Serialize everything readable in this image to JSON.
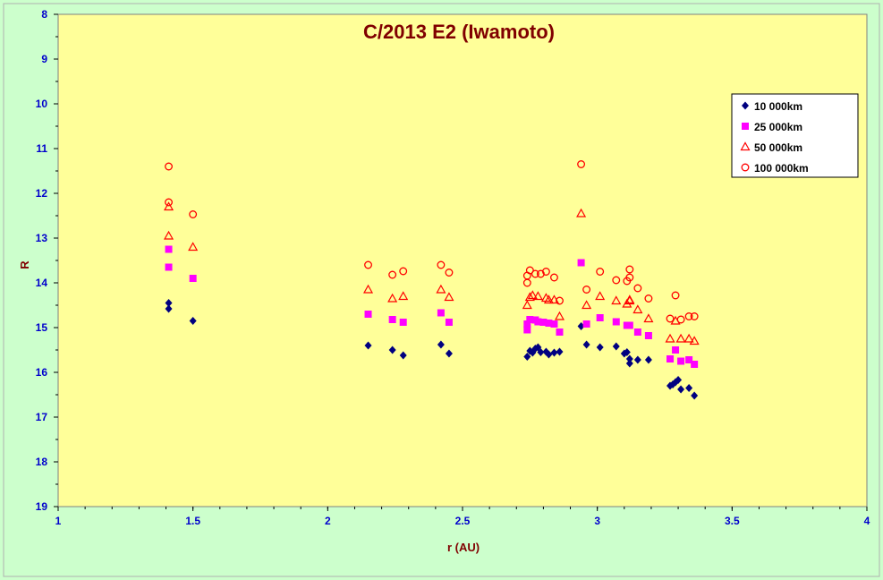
{
  "chart_data": {
    "type": "scatter",
    "title": "C/2013 E2 (Iwamoto)",
    "xlabel": "r (AU)",
    "ylabel": "R",
    "xlim": [
      1,
      4
    ],
    "ylim": [
      8,
      19
    ],
    "y_inverted": true,
    "x_ticks": [
      "1",
      "1.5",
      "2",
      "2.5",
      "3",
      "3.5",
      "4"
    ],
    "y_ticks": [
      "8",
      "9",
      "10",
      "11",
      "12",
      "13",
      "14",
      "15",
      "16",
      "17",
      "18",
      "19"
    ],
    "grid": false,
    "legend_position": "right",
    "colors": {
      "page_background": "#ccffcc",
      "plot_background": "#ffff99",
      "title": "#800000",
      "ticks": "#0000cc",
      "axis_label": "#800000"
    },
    "series": [
      {
        "name": "10 000km",
        "marker": "diamond",
        "color": "#000080",
        "points": [
          [
            1.41,
            14.45
          ],
          [
            1.41,
            14.58
          ],
          [
            1.5,
            14.85
          ],
          [
            2.15,
            15.4
          ],
          [
            2.24,
            15.5
          ],
          [
            2.28,
            15.62
          ],
          [
            2.42,
            15.38
          ],
          [
            2.45,
            15.58
          ],
          [
            2.74,
            15.65
          ],
          [
            2.75,
            15.52
          ],
          [
            2.76,
            15.56
          ],
          [
            2.77,
            15.47
          ],
          [
            2.78,
            15.44
          ],
          [
            2.79,
            15.55
          ],
          [
            2.81,
            15.54
          ],
          [
            2.82,
            15.6
          ],
          [
            2.84,
            15.56
          ],
          [
            2.86,
            15.54
          ],
          [
            2.94,
            14.97
          ],
          [
            2.96,
            15.38
          ],
          [
            3.01,
            15.44
          ],
          [
            3.07,
            15.42
          ],
          [
            3.1,
            15.58
          ],
          [
            3.11,
            15.55
          ],
          [
            3.12,
            15.7
          ],
          [
            3.12,
            15.8
          ],
          [
            3.15,
            15.72
          ],
          [
            3.19,
            15.72
          ],
          [
            3.27,
            16.3
          ],
          [
            3.28,
            16.27
          ],
          [
            3.29,
            16.22
          ],
          [
            3.3,
            16.17
          ],
          [
            3.31,
            16.38
          ],
          [
            3.34,
            16.35
          ],
          [
            3.36,
            16.52
          ]
        ]
      },
      {
        "name": "25 000km",
        "marker": "square",
        "color": "#ff00ff",
        "points": [
          [
            1.41,
            13.25
          ],
          [
            1.41,
            13.65
          ],
          [
            1.5,
            13.9
          ],
          [
            2.15,
            14.7
          ],
          [
            2.24,
            14.82
          ],
          [
            2.28,
            14.88
          ],
          [
            2.42,
            14.67
          ],
          [
            2.45,
            14.88
          ],
          [
            2.74,
            15.05
          ],
          [
            2.74,
            14.92
          ],
          [
            2.75,
            14.82
          ],
          [
            2.77,
            14.83
          ],
          [
            2.78,
            14.87
          ],
          [
            2.8,
            14.88
          ],
          [
            2.82,
            14.9
          ],
          [
            2.84,
            14.92
          ],
          [
            2.86,
            15.1
          ],
          [
            2.94,
            13.55
          ],
          [
            2.96,
            14.92
          ],
          [
            3.01,
            14.78
          ],
          [
            3.07,
            14.87
          ],
          [
            3.11,
            14.95
          ],
          [
            3.12,
            14.95
          ],
          [
            3.15,
            15.1
          ],
          [
            3.19,
            15.18
          ],
          [
            3.27,
            15.7
          ],
          [
            3.29,
            15.5
          ],
          [
            3.31,
            15.75
          ],
          [
            3.34,
            15.72
          ],
          [
            3.36,
            15.82
          ]
        ]
      },
      {
        "name": "50 000km",
        "marker": "triangle",
        "color": "#ff0000",
        "points": [
          [
            1.41,
            12.3
          ],
          [
            1.41,
            12.95
          ],
          [
            1.5,
            13.2
          ],
          [
            2.15,
            14.15
          ],
          [
            2.24,
            14.35
          ],
          [
            2.28,
            14.3
          ],
          [
            2.42,
            14.15
          ],
          [
            2.45,
            14.32
          ],
          [
            2.74,
            14.5
          ],
          [
            2.75,
            14.32
          ],
          [
            2.76,
            14.28
          ],
          [
            2.78,
            14.3
          ],
          [
            2.81,
            14.34
          ],
          [
            2.82,
            14.38
          ],
          [
            2.84,
            14.38
          ],
          [
            2.86,
            14.75
          ],
          [
            2.94,
            12.45
          ],
          [
            2.96,
            14.5
          ],
          [
            3.01,
            14.3
          ],
          [
            3.07,
            14.4
          ],
          [
            3.11,
            14.47
          ],
          [
            3.12,
            14.38
          ],
          [
            3.12,
            14.4
          ],
          [
            3.15,
            14.6
          ],
          [
            3.19,
            14.8
          ],
          [
            3.27,
            15.25
          ],
          [
            3.29,
            14.85
          ],
          [
            3.31,
            15.25
          ],
          [
            3.34,
            15.25
          ],
          [
            3.36,
            15.3
          ]
        ]
      },
      {
        "name": "100 000km",
        "marker": "circle",
        "color": "#ff0000",
        "points": [
          [
            1.41,
            11.4
          ],
          [
            1.41,
            12.2
          ],
          [
            1.5,
            12.47
          ],
          [
            2.15,
            13.6
          ],
          [
            2.24,
            13.82
          ],
          [
            2.28,
            13.74
          ],
          [
            2.42,
            13.6
          ],
          [
            2.45,
            13.77
          ],
          [
            2.74,
            14.0
          ],
          [
            2.74,
            13.84
          ],
          [
            2.75,
            13.72
          ],
          [
            2.77,
            13.8
          ],
          [
            2.79,
            13.8
          ],
          [
            2.81,
            13.75
          ],
          [
            2.84,
            13.88
          ],
          [
            2.86,
            14.4
          ],
          [
            2.94,
            11.35
          ],
          [
            2.96,
            14.15
          ],
          [
            3.01,
            13.75
          ],
          [
            3.07,
            13.94
          ],
          [
            3.11,
            13.96
          ],
          [
            3.12,
            13.7
          ],
          [
            3.12,
            13.88
          ],
          [
            3.15,
            14.12
          ],
          [
            3.19,
            14.35
          ],
          [
            3.27,
            14.8
          ],
          [
            3.29,
            14.28
          ],
          [
            3.31,
            14.82
          ],
          [
            3.34,
            14.75
          ],
          [
            3.36,
            14.75
          ]
        ]
      }
    ]
  }
}
